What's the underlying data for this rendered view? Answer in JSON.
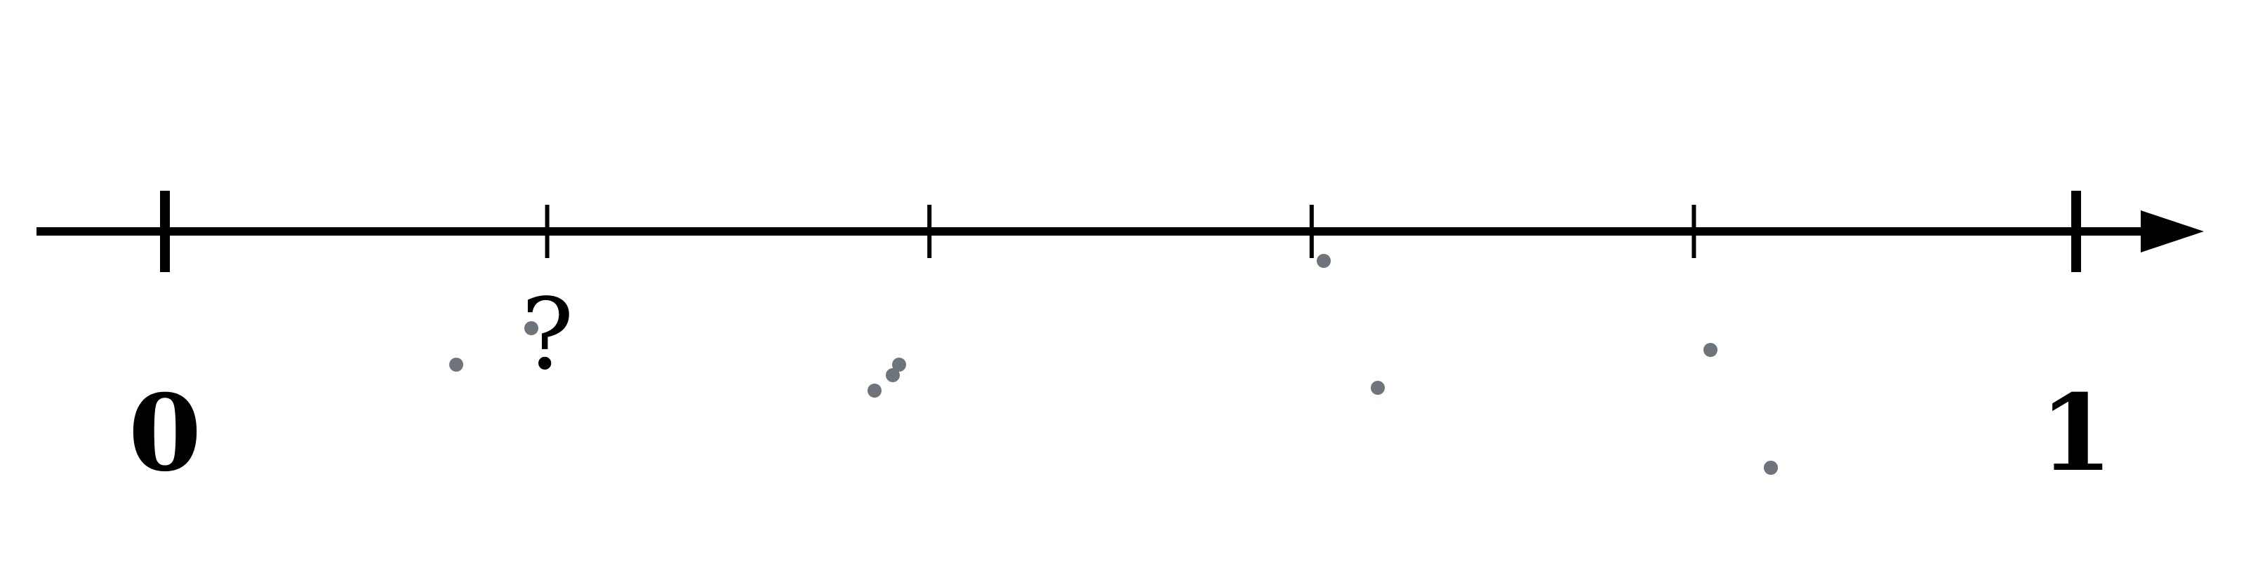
{
  "number_line": {
    "start_label": "0",
    "end_label": "1",
    "unknown_label": "?",
    "min": 0,
    "max": 1,
    "divisions": 5,
    "unknown_tick_index": 1,
    "line_color": "#000000",
    "stray_dot_color": "#6d747b",
    "stray_dot_count": 10
  }
}
